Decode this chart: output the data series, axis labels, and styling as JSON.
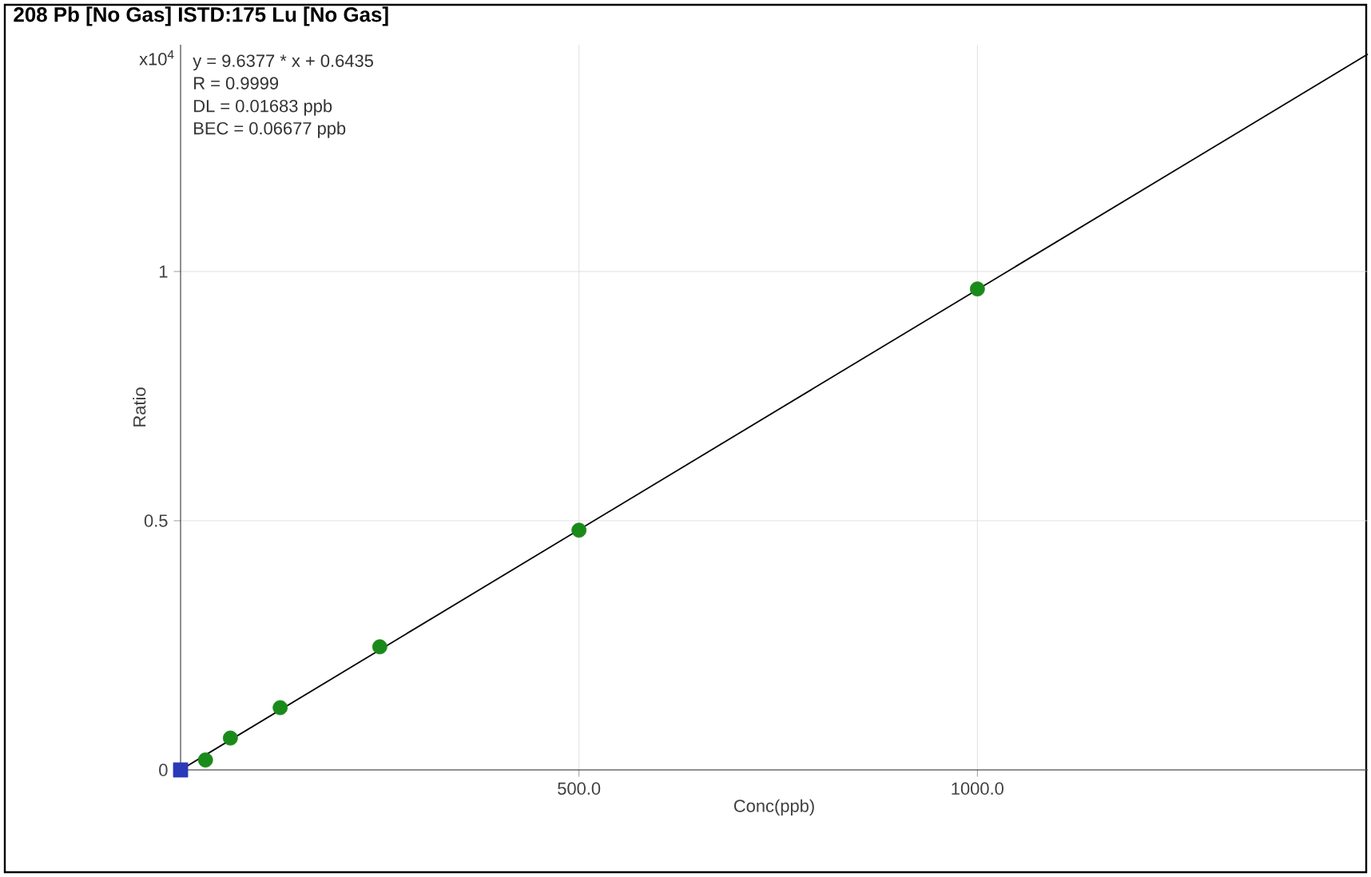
{
  "chart_data": {
    "type": "scatter",
    "title": "208 Pb [No Gas] ISTD:175 Lu [No Gas]",
    "xlabel": "Conc(ppb)",
    "ylabel": "Ratio",
    "annotations": [
      "x10$^{4}$",
      "y = 9.6377 * x  + 0.6435",
      "R =  0.9999",
      "DL = 0.01683 ppb",
      "BEC = 0.06677 ppb"
    ],
    "xlim": [
      0,
      1490
    ],
    "ylim": [
      0,
      1.455
    ],
    "xticks": [
      {
        "value": 0,
        "label": null
      },
      {
        "value": 500,
        "label": "500.0"
      },
      {
        "value": 1000,
        "label": "1000.0"
      }
    ],
    "yticks": [
      0,
      0.5,
      1
    ],
    "grid": true,
    "marker": "circle",
    "series": [
      {
        "type": "line",
        "color": "#000000",
        "marker": "none",
        "x": [
          0,
          1490
        ],
        "values": [
          0,
          1.436
        ]
      },
      {
        "color": "#1a8a1a",
        "x": [
          31.25,
          62.5,
          125,
          250,
          500,
          1000
        ],
        "values": [
          0.02,
          0.064,
          0.125,
          0.247,
          0.481,
          0.965
        ]
      },
      {
        "color": "#2a3ab8",
        "marker": "square",
        "x": [
          0
        ],
        "values": [
          0
        ]
      }
    ]
  }
}
